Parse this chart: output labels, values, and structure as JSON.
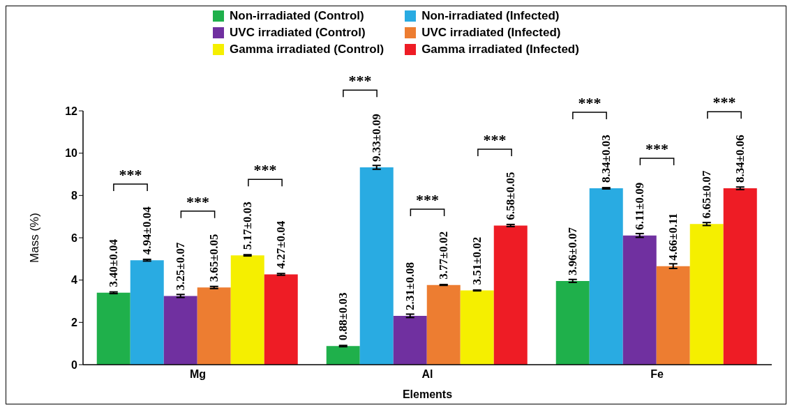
{
  "chart_data": {
    "type": "bar",
    "xlabel": "Elements",
    "ylabel": "Mass (%)",
    "categories": [
      "Mg",
      "Al",
      "Fe"
    ],
    "ylim": [
      0,
      12
    ],
    "yticks": [
      0,
      2,
      4,
      6,
      8,
      10,
      12
    ],
    "legend": "top",
    "series": [
      {
        "name": "Non-irradiated (Control)",
        "color": "#1fb04b",
        "values": [
          3.4,
          0.88,
          3.96
        ],
        "errors": [
          0.04,
          0.03,
          0.07
        ],
        "value_labels": [
          "3.40±0.04",
          "0.88±0.03",
          "3.96±0.07"
        ]
      },
      {
        "name": "Non-irradiated (Infected)",
        "color": "#29abe2",
        "values": [
          4.94,
          9.33,
          8.34
        ],
        "errors": [
          0.04,
          0.09,
          0.03
        ],
        "value_labels": [
          "4.94±0.04",
          "9.33±0.09",
          "8.34±0.03"
        ]
      },
      {
        "name": "UVC irradiated (Control)",
        "color": "#7030a0",
        "values": [
          3.25,
          2.31,
          6.11
        ],
        "errors": [
          0.07,
          0.08,
          0.09
        ],
        "value_labels": [
          "3.25±0.07",
          "2.31±0.08",
          "6.11±0.09"
        ]
      },
      {
        "name": "UVC irradiated (Infected)",
        "color": "#ed7d31",
        "values": [
          3.65,
          3.77,
          4.66
        ],
        "errors": [
          0.05,
          0.02,
          0.11
        ],
        "value_labels": [
          "3.65±0.05",
          "3.77±0.02",
          "4.66±0.11"
        ]
      },
      {
        "name": "Gamma irradiated (Control)",
        "color": "#f5ef00",
        "values": [
          5.17,
          3.51,
          6.65
        ],
        "errors": [
          0.03,
          0.02,
          0.07
        ],
        "value_labels": [
          "5.17±0.03",
          "3.51±0.02",
          "6.65±0.07"
        ]
      },
      {
        "name": "Gamma irradiated (Infected)",
        "color": "#ee1c25",
        "values": [
          4.27,
          6.58,
          8.34
        ],
        "errors": [
          0.04,
          0.05,
          0.06
        ],
        "value_labels": [
          "4.27±0.04",
          "6.58±0.05",
          "8.34±0.06"
        ]
      }
    ],
    "annotations": [
      "***",
      "***",
      "***",
      "***",
      "***",
      "***",
      "***",
      "***",
      "***"
    ]
  }
}
